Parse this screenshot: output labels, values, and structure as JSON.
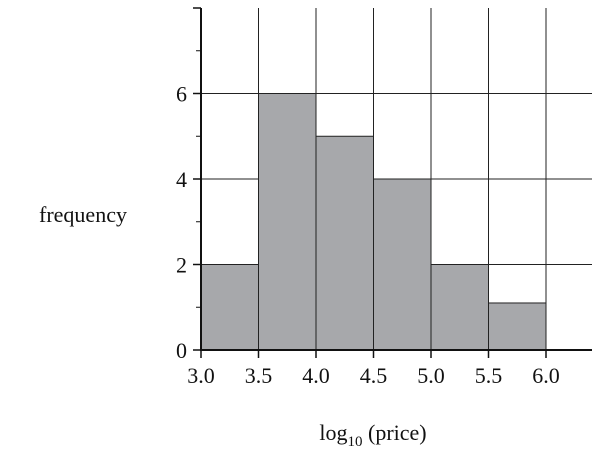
{
  "chart_data": {
    "type": "bar",
    "bins": [
      {
        "x0": 3.0,
        "x1": 3.5,
        "value": 2
      },
      {
        "x0": 3.5,
        "x1": 4.0,
        "value": 6
      },
      {
        "x0": 4.0,
        "x1": 4.5,
        "value": 5
      },
      {
        "x0": 4.5,
        "x1": 5.0,
        "value": 4
      },
      {
        "x0": 5.0,
        "x1": 5.5,
        "value": 2
      },
      {
        "x0": 5.5,
        "x1": 6.0,
        "value": 1.1
      }
    ],
    "xlim": [
      3.0,
      6.4
    ],
    "ylim": [
      0,
      8
    ],
    "xticks": [
      3.0,
      3.5,
      4.0,
      4.5,
      5.0,
      5.5,
      6.0
    ],
    "xtick_labels": [
      "3.0",
      "3.5",
      "4.0",
      "4.5",
      "5.0",
      "5.5",
      "6.0"
    ],
    "yticks": [
      0,
      2,
      4,
      6
    ],
    "ytick_labels": [
      "0",
      "2",
      "4",
      "6"
    ],
    "ylabel": "frequency",
    "xlabel": {
      "prefix": "log",
      "subscript": "10",
      "suffix": " (price)"
    },
    "grid": true,
    "bar_color": "#a7a8ab"
  }
}
